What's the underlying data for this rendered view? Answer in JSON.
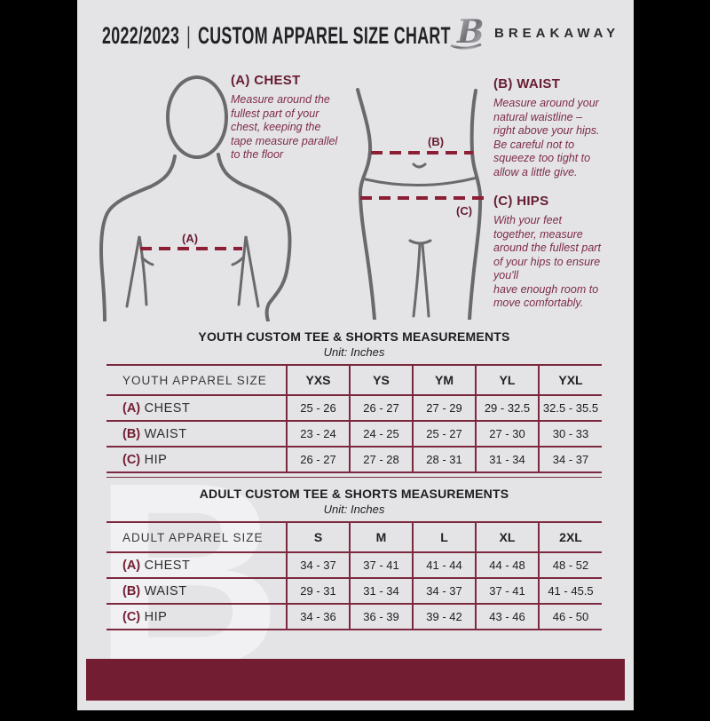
{
  "header": {
    "season": "2022/2023",
    "separator": "|",
    "title": "CUSTOM APPAREL SIZE CHART",
    "brand": "BREAKAWAY",
    "logo_letter": "B"
  },
  "guide": {
    "chest": {
      "heading": "(A) CHEST",
      "description": "Measure around the\nfullest part of your\nchest, keeping the\ntape measure parallel\nto the floor"
    },
    "waist": {
      "heading": "(B) WAIST",
      "description": "Measure around your\nnatural waistline –\nright above your hips.\nBe careful not to\nsqueeze too tight to\nallow a little give."
    },
    "hips": {
      "heading": "(C) HIPS",
      "description": "With your feet\ntogether, measure\naround the fullest part\nof your hips to ensure\nyou'll\nhave enough room to\nmove comfortably."
    },
    "marker_chest": "(A)",
    "marker_waist": "(B)",
    "marker_hips": "(C)"
  },
  "youth_table": {
    "title": "YOUTH CUSTOM TEE & SHORTS MEASUREMENTS",
    "unit": "Unit: Inches",
    "header": [
      "YOUTH APPAREL SIZE",
      "YXS",
      "YS",
      "YM",
      "YL",
      "YXL"
    ],
    "rows": [
      {
        "key": "(A)",
        "label": "CHEST",
        "values": [
          "25 - 26",
          "26 - 27",
          "27 - 29",
          "29 - 32.5",
          "32.5 - 35.5"
        ]
      },
      {
        "key": "(B)",
        "label": "WAIST",
        "values": [
          "23 - 24",
          "24 - 25",
          "25 - 27",
          "27 - 30",
          "30 - 33"
        ]
      },
      {
        "key": "(C)",
        "label": "HIP",
        "values": [
          "26 - 27",
          "27 - 28",
          "28 - 31",
          "31 - 34",
          "34 - 37"
        ]
      }
    ]
  },
  "adult_table": {
    "title": "ADULT CUSTOM TEE & SHORTS MEASUREMENTS",
    "unit": "Unit: Inches",
    "header": [
      "ADULT APPAREL SIZE",
      "S",
      "M",
      "L",
      "XL",
      "2XL"
    ],
    "rows": [
      {
        "key": "(A)",
        "label": "CHEST",
        "values": [
          "34 - 37",
          "37 - 41",
          "41 - 44",
          "44 - 48",
          "48 - 52"
        ]
      },
      {
        "key": "(B)",
        "label": "WAIST",
        "values": [
          "29 - 31",
          "31 - 34",
          "34 - 37",
          "37 - 41",
          "41 - 45.5"
        ]
      },
      {
        "key": "(C)",
        "label": "HIP",
        "values": [
          "34 - 36",
          "36 - 39",
          "39 - 42",
          "43 - 46",
          "46 - 50"
        ]
      }
    ]
  },
  "watermark": "B",
  "colors": {
    "maroon": "#731d33",
    "maroon-border": "#7c2940",
    "maroon-heading": "#661c31",
    "maroon-text": "#7e2b4a",
    "dash": "#8c1e35",
    "body-outline": "#6a6a6c",
    "page-bg": "#e4e4e6",
    "ink": "#222226"
  }
}
